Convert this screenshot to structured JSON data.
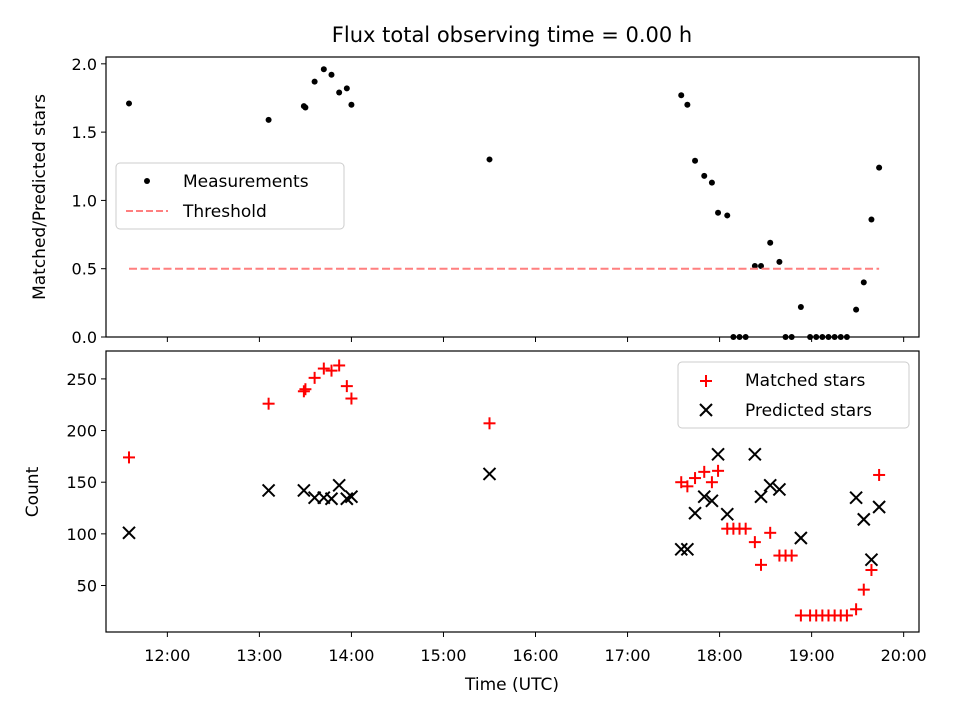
{
  "figure": {
    "title": "Flux total observing time = 0.00 h"
  },
  "chart_data": [
    {
      "type": "scatter",
      "ylabel": "Matched/Predicted stars",
      "xlabel": "",
      "xlim": [
        "11:20",
        "20:10"
      ],
      "ylim": [
        0,
        2.05
      ],
      "yticks": [
        0.0,
        0.5,
        1.0,
        1.5,
        2.0
      ],
      "ytick_labels": [
        "0.0",
        "0.5",
        "1.0",
        "1.5",
        "2.0"
      ],
      "grid": false,
      "legend": "center-left",
      "series": [
        {
          "name": "Measurements",
          "marker": "dot",
          "color": "#000000",
          "points": [
            [
              "11:35",
              1.71
            ],
            [
              "13:06",
              1.59
            ],
            [
              "13:29",
              1.69
            ],
            [
              "13:30",
              1.68
            ],
            [
              "13:36",
              1.87
            ],
            [
              "13:42",
              1.96
            ],
            [
              "13:47",
              1.92
            ],
            [
              "13:52",
              1.79
            ],
            [
              "13:57",
              1.82
            ],
            [
              "14:00",
              1.7
            ],
            [
              "15:30",
              1.3
            ],
            [
              "17:35",
              1.77
            ],
            [
              "17:39",
              1.7
            ],
            [
              "17:44",
              1.29
            ],
            [
              "17:50",
              1.18
            ],
            [
              "17:55",
              1.13
            ],
            [
              "17:59",
              0.91
            ],
            [
              "18:05",
              0.89
            ],
            [
              "18:09",
              0.0
            ],
            [
              "18:13",
              0.0
            ],
            [
              "18:17",
              0.0
            ],
            [
              "18:23",
              0.52
            ],
            [
              "18:27",
              0.52
            ],
            [
              "18:33",
              0.69
            ],
            [
              "18:39",
              0.55
            ],
            [
              "18:43",
              0.0
            ],
            [
              "18:47",
              0.0
            ],
            [
              "18:53",
              0.22
            ],
            [
              "18:59",
              0.0
            ],
            [
              "19:03",
              0.0
            ],
            [
              "19:07",
              0.0
            ],
            [
              "19:11",
              0.0
            ],
            [
              "19:15",
              0.0
            ],
            [
              "19:19",
              0.0
            ],
            [
              "19:23",
              0.0
            ],
            [
              "19:29",
              0.2
            ],
            [
              "19:34",
              0.4
            ],
            [
              "19:39",
              0.86
            ],
            [
              "19:44",
              1.24
            ]
          ]
        },
        {
          "name": "Threshold",
          "type": "line",
          "style": "dashed",
          "color": "#ff7f7f",
          "points": [
            [
              "11:35",
              0.5
            ],
            [
              "19:44",
              0.5
            ]
          ]
        }
      ]
    },
    {
      "type": "scatter",
      "ylabel": "Count",
      "xlabel": "Time (UTC)",
      "xlim": [
        "11:20",
        "20:10"
      ],
      "ylim": [
        5,
        277
      ],
      "yticks": [
        50,
        100,
        150,
        200,
        250
      ],
      "ytick_labels": [
        "50",
        "100",
        "150",
        "200",
        "250"
      ],
      "xticks": [
        "12:00",
        "13:00",
        "14:00",
        "15:00",
        "16:00",
        "17:00",
        "18:00",
        "19:00",
        "20:00"
      ],
      "xtick_labels": [
        "12:00",
        "13:00",
        "14:00",
        "15:00",
        "16:00",
        "17:00",
        "18:00",
        "19:00",
        "20:00"
      ],
      "grid": false,
      "legend": "top-right",
      "series": [
        {
          "name": "Matched stars",
          "marker": "plus",
          "color": "#ff0000",
          "points": [
            [
              "11:35",
              174
            ],
            [
              "13:06",
              226
            ],
            [
              "13:29",
              238
            ],
            [
              "13:30",
              240
            ],
            [
              "13:36",
              251
            ],
            [
              "13:42",
              260
            ],
            [
              "13:47",
              258
            ],
            [
              "13:52",
              263
            ],
            [
              "13:57",
              243
            ],
            [
              "14:00",
              231
            ],
            [
              "15:30",
              207
            ],
            [
              "17:35",
              150
            ],
            [
              "17:39",
              146
            ],
            [
              "17:44",
              154
            ],
            [
              "17:50",
              160
            ],
            [
              "17:55",
              150
            ],
            [
              "17:59",
              161
            ],
            [
              "18:05",
              105
            ],
            [
              "18:09",
              105
            ],
            [
              "18:13",
              105
            ],
            [
              "18:17",
              105
            ],
            [
              "18:23",
              92
            ],
            [
              "18:27",
              70
            ],
            [
              "18:33",
              101
            ],
            [
              "18:39",
              79
            ],
            [
              "18:43",
              79
            ],
            [
              "18:47",
              79
            ],
            [
              "18:53",
              21
            ],
            [
              "18:59",
              21
            ],
            [
              "19:03",
              21
            ],
            [
              "19:07",
              21
            ],
            [
              "19:11",
              21
            ],
            [
              "19:15",
              21
            ],
            [
              "19:19",
              21
            ],
            [
              "19:23",
              21
            ],
            [
              "19:29",
              27
            ],
            [
              "19:34",
              46
            ],
            [
              "19:39",
              65
            ],
            [
              "19:44",
              157
            ]
          ]
        },
        {
          "name": "Predicted stars",
          "marker": "x",
          "color": "#000000",
          "points": [
            [
              "11:35",
              101
            ],
            [
              "13:06",
              142
            ],
            [
              "13:29",
              142
            ],
            [
              "13:36",
              135
            ],
            [
              "13:42",
              135
            ],
            [
              "13:47",
              134
            ],
            [
              "13:52",
              147
            ],
            [
              "13:57",
              134
            ],
            [
              "14:00",
              136
            ],
            [
              "15:30",
              158
            ],
            [
              "17:35",
              85
            ],
            [
              "17:39",
              85
            ],
            [
              "17:44",
              120
            ],
            [
              "17:50",
              136
            ],
            [
              "17:55",
              132
            ],
            [
              "17:59",
              177
            ],
            [
              "18:05",
              119
            ],
            [
              "18:23",
              177
            ],
            [
              "18:27",
              136
            ],
            [
              "18:33",
              147
            ],
            [
              "18:39",
              143
            ],
            [
              "18:53",
              96
            ],
            [
              "19:29",
              135
            ],
            [
              "19:34",
              114
            ],
            [
              "19:39",
              75
            ],
            [
              "19:44",
              126
            ]
          ]
        }
      ]
    }
  ]
}
